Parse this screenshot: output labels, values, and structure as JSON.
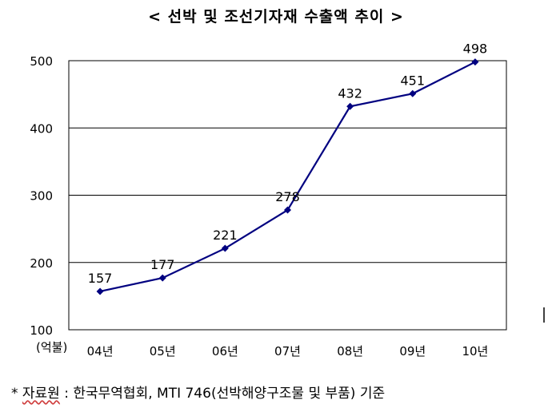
{
  "chart_data": {
    "type": "line",
    "title": "< 선박 및 조선기자재 수출액 추이 >",
    "ylabel": "(억불)",
    "ylim": [
      100,
      500
    ],
    "yticks": [
      100,
      200,
      300,
      400,
      500
    ],
    "grid": true,
    "categories": [
      "04년",
      "05년",
      "06년",
      "07년",
      "08년",
      "09년",
      "10년"
    ],
    "values": [
      157,
      177,
      221,
      278,
      432,
      451,
      498
    ],
    "data_labels": [
      "157",
      "177",
      "221",
      "278",
      "432",
      "451",
      "498"
    ],
    "line_color": "#000080"
  },
  "footnote": {
    "bullet": "*",
    "label": "자료원",
    "separator": ":",
    "text": "한국무역협회, MTI 746(선박해양구조물 및 부품) 기준"
  }
}
